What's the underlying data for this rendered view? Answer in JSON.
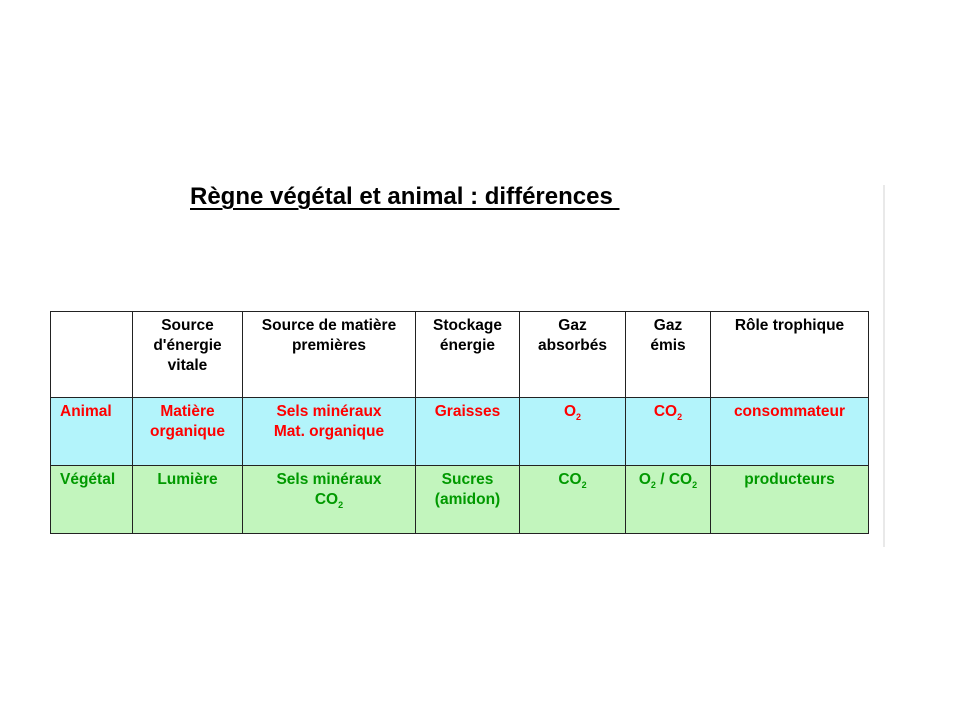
{
  "title": "Règne végétal et animal : différences ",
  "colors": {
    "animal_text": "#ff0000",
    "vegetal_text": "#009900",
    "animal_row_bg": "#b3f4fb",
    "vegetal_row_bg": "#c2f5bd"
  },
  "table": {
    "headers": {
      "source_energie": [
        "Source",
        "d'énergie",
        "vitale"
      ],
      "source_matiere": [
        "Source de matière",
        "premières"
      ],
      "stockage": [
        "Stockage",
        "énergie"
      ],
      "gaz_absorbes": [
        "Gaz",
        "absorbés"
      ],
      "gaz_emis": [
        "Gaz",
        "émis"
      ],
      "role": [
        "Rôle trophique"
      ]
    },
    "animal": {
      "label": "Animal",
      "source_energie": [
        "Matière",
        "organique"
      ],
      "source_matiere": [
        "Sels minéraux",
        "Mat. organique"
      ],
      "stockage": "Graisses",
      "gaz_absorbes": {
        "base": "O",
        "sub": "2"
      },
      "gaz_emis": {
        "base": "CO",
        "sub": "2"
      },
      "role": "consommateur"
    },
    "vegetal": {
      "label": "Végétal",
      "source_energie": "Lumière",
      "source_matiere": {
        "line1": "Sels minéraux",
        "line2_base": "CO",
        "line2_sub": "2"
      },
      "stockage": [
        "Sucres",
        "(amidon)"
      ],
      "gaz_absorbes": {
        "base": "CO",
        "sub": "2"
      },
      "gaz_emis": {
        "a_base": "O",
        "a_sub": "2",
        "sep": " / ",
        "b_base": "CO",
        "b_sub": "2"
      },
      "role": "producteurs"
    }
  }
}
